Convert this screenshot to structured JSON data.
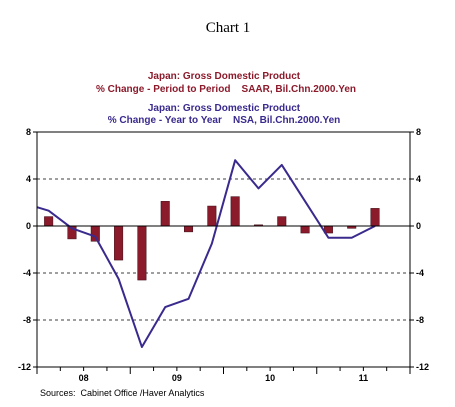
{
  "chart_data": {
    "type": "bar",
    "title": "Chart 1",
    "legend": [
      {
        "series": "bar",
        "line1": "Japan: Gross Domestic Product",
        "line2": "% Change - Period to Period    SAAR, Bil.Chn.2000.Yen",
        "color": "#8b1a2b"
      },
      {
        "series": "line",
        "line1": "Japan: Gross Domestic Product",
        "line2": "% Change - Year to Year    NSA, Bil.Chn.2000.Yen",
        "color": "#3a2a8e"
      }
    ],
    "source": "Sources:  Cabinet Office /Haver Analytics",
    "ylim": [
      -12,
      8
    ],
    "yticks": [
      -12,
      -8,
      -4,
      0,
      4,
      8
    ],
    "ytick_labels": [
      "-12",
      "-8",
      "-4",
      "0",
      "4",
      "8"
    ],
    "grid_y": [
      4,
      -4,
      -8
    ],
    "x_groups": [
      "08",
      "09",
      "10",
      "11"
    ],
    "quarters": [
      "2008Q1",
      "2008Q2",
      "2008Q3",
      "2008Q4",
      "2009Q1",
      "2009Q2",
      "2009Q3",
      "2009Q4",
      "2010Q1",
      "2010Q2",
      "2010Q3",
      "2010Q4",
      "2011Q1",
      "2011Q2",
      "2011Q3",
      "2011Q4"
    ],
    "series": [
      {
        "kind": "bar",
        "color": "#8b1a2b",
        "values": [
          0.8,
          -1.1,
          -1.3,
          -2.9,
          -4.6,
          2.1,
          -0.5,
          1.7,
          2.5,
          0.1,
          0.8,
          -0.6,
          -0.6,
          -0.2,
          1.5,
          null
        ]
      },
      {
        "kind": "line",
        "color": "#3a2a8e",
        "points": [
          {
            "q": 0.0,
            "v": 1.6
          },
          {
            "q": 0.5,
            "v": 1.3
          },
          {
            "q": 1.5,
            "v": -0.2
          },
          {
            "q": 2.5,
            "v": -0.9
          },
          {
            "q": 3.5,
            "v": -4.5
          },
          {
            "q": 4.5,
            "v": -10.3
          },
          {
            "q": 5.5,
            "v": -6.9
          },
          {
            "q": 6.5,
            "v": -6.2
          },
          {
            "q": 7.5,
            "v": -1.5
          },
          {
            "q": 8.5,
            "v": 5.6
          },
          {
            "q": 9.5,
            "v": 3.2
          },
          {
            "q": 10.5,
            "v": 5.2
          },
          {
            "q": 11.5,
            "v": 2.1
          },
          {
            "q": 12.5,
            "v": -1.0
          },
          {
            "q": 13.5,
            "v": -1.0
          },
          {
            "q": 14.5,
            "v": 0.0
          }
        ]
      }
    ]
  }
}
